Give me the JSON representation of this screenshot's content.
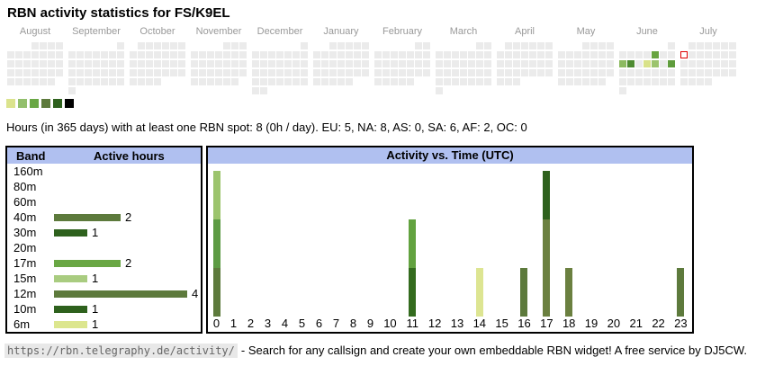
{
  "title": "RBN activity statistics for FS/K9EL",
  "stats_line": "Hours (in 365 days) with at least one RBN spot: 8 (0h / day). EU: 5, NA: 8, AS: 0, SA: 6, AF: 2, OC: 0",
  "band_table": {
    "headers": [
      "Band",
      "Active hours"
    ]
  },
  "footer": {
    "url": "https://rbn.telegraphy.de/activity/",
    "text": "- Search for any callsign and create your own embeddable RBN widget! A free service by DJ5CW."
  },
  "colors": {
    "header_bg": "#b0c0f0",
    "box_border": "#000000",
    "month_label": "#999999",
    "calendar_empty": "#ebebeb",
    "today_outline": "#dd0000",
    "url_bg": "#e8e8e8",
    "url_text": "#666666"
  },
  "chart_data": [
    {
      "type": "heatmap",
      "subtype": "year-calendar-daily-activity",
      "week_start": "Monday",
      "months": [
        {
          "name": "August",
          "start_col": 4,
          "days": 31
        },
        {
          "name": "September",
          "start_col": 7,
          "days": 30
        },
        {
          "name": "October",
          "start_col": 2,
          "days": 31
        },
        {
          "name": "November",
          "start_col": 5,
          "days": 30
        },
        {
          "name": "December",
          "start_col": 7,
          "days": 31
        },
        {
          "name": "January",
          "start_col": 3,
          "days": 31
        },
        {
          "name": "February",
          "start_col": 6,
          "days": 28
        },
        {
          "name": "March",
          "start_col": 6,
          "days": 31
        },
        {
          "name": "April",
          "start_col": 2,
          "days": 30
        },
        {
          "name": "May",
          "start_col": 4,
          "days": 31
        },
        {
          "name": "June",
          "start_col": 7,
          "days": 30
        },
        {
          "name": "July",
          "start_col": 2,
          "days": 31
        }
      ],
      "active_days": [
        {
          "month": "June",
          "day": 6,
          "color": "#68a43f"
        },
        {
          "month": "June",
          "day": 9,
          "color": "#8cba60"
        },
        {
          "month": "June",
          "day": 10,
          "color": "#4e8b31"
        },
        {
          "month": "June",
          "day": 12,
          "color": "#d9e289"
        },
        {
          "month": "June",
          "day": 13,
          "color": "#9cc46d"
        },
        {
          "month": "June",
          "day": 15,
          "color": "#5f9c3c"
        }
      ],
      "today": {
        "month": "July",
        "day": 7,
        "outline_color": "#dd0000"
      },
      "empty_color": "#ebebeb",
      "legend_colors": [
        "#dbe38d",
        "#92bf6c",
        "#69a744",
        "#5d7a3c",
        "#2e611d",
        "#000000"
      ]
    },
    {
      "type": "bar",
      "orientation": "horizontal",
      "title": "Band active hours",
      "categories": [
        "160m",
        "80m",
        "60m",
        "40m",
        "30m",
        "20m",
        "17m",
        "15m",
        "12m",
        "10m",
        "6m"
      ],
      "values": [
        0,
        0,
        0,
        2,
        1,
        0,
        2,
        1,
        4,
        1,
        1
      ],
      "bar_colors": [
        "",
        "",
        "",
        "#5d7a3c",
        "#2e611d",
        "",
        "#69a744",
        "#a9cc80",
        "#5d7a3c",
        "#2e611d",
        "#dce68e"
      ],
      "xlim": [
        0,
        4
      ]
    },
    {
      "type": "bar",
      "title": "Activity vs. Time (UTC)",
      "categories": [
        "0",
        "1",
        "2",
        "3",
        "4",
        "5",
        "6",
        "7",
        "8",
        "9",
        "10",
        "11",
        "12",
        "13",
        "14",
        "15",
        "16",
        "17",
        "18",
        "19",
        "20",
        "21",
        "22",
        "23"
      ],
      "values": [
        3,
        0,
        0,
        0,
        0,
        0,
        0,
        0,
        0,
        0,
        0,
        2,
        0,
        0,
        1,
        0,
        1,
        3,
        1,
        0,
        0,
        0,
        0,
        1
      ],
      "stack_colors": {
        "0": [
          "#9cc46d",
          "#5d9b44",
          "#5d7a3c"
        ],
        "11": [
          "#62a23f",
          "#336b1e"
        ],
        "14": [
          "#dde592"
        ],
        "16": [
          "#5d7a3c"
        ],
        "17": [
          "#2e611d",
          "#6b8040",
          "#6b8040"
        ],
        "18": [
          "#6b8040"
        ],
        "23": [
          "#5d7a3c"
        ]
      },
      "ylim": [
        0,
        3
      ],
      "xlabel": "",
      "ylabel": "",
      "grid": false,
      "legend": "none"
    }
  ]
}
